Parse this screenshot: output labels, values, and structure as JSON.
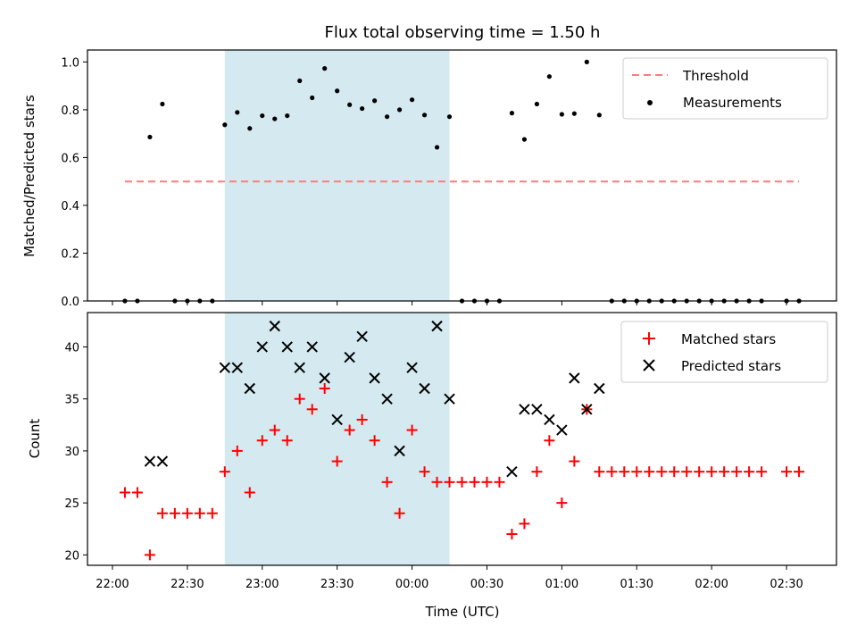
{
  "chart_data": [
    {
      "type": "scatter",
      "title": "Flux total observing time = 1.50 h",
      "xlabel": "",
      "ylabel": "Matched/Predicted stars",
      "ylim": [
        0,
        1.05
      ],
      "yticks": [
        0.0,
        0.2,
        0.4,
        0.6,
        0.8,
        1.0
      ],
      "ytick_labels": [
        "0.0",
        "0.2",
        "0.4",
        "0.6",
        "0.8",
        "1.0"
      ],
      "xlim": [
        "21:50",
        "02:50"
      ],
      "shaded_interval": [
        "22:45",
        "00:15"
      ],
      "shade_color": "#d4eaf0",
      "legend": {
        "placement": "upper right",
        "entries": [
          "Threshold",
          "Measurements"
        ]
      },
      "threshold": {
        "name": "Threshold",
        "value": 0.5,
        "x_range": [
          "22:05",
          "02:35"
        ],
        "color": "#ff7b7b",
        "style": "dashed"
      },
      "series": [
        {
          "name": "Measurements",
          "color": "#000000",
          "marker": "dot",
          "points": [
            [
              "22:05",
              0.0
            ],
            [
              "22:10",
              0.0
            ],
            [
              "22:15",
              0.686
            ],
            [
              "22:20",
              0.824
            ],
            [
              "22:25",
              0.0
            ],
            [
              "22:30",
              0.0
            ],
            [
              "22:35",
              0.0
            ],
            [
              "22:40",
              0.0
            ],
            [
              "22:45",
              0.737
            ],
            [
              "22:50",
              0.789
            ],
            [
              "22:55",
              0.722
            ],
            [
              "23:00",
              0.775
            ],
            [
              "23:05",
              0.762
            ],
            [
              "23:10",
              0.775
            ],
            [
              "23:15",
              0.921
            ],
            [
              "23:20",
              0.85
            ],
            [
              "23:25",
              0.973
            ],
            [
              "23:30",
              0.879
            ],
            [
              "23:35",
              0.821
            ],
            [
              "23:40",
              0.805
            ],
            [
              "23:45",
              0.838
            ],
            [
              "23:50",
              0.771
            ],
            [
              "23:55",
              0.8
            ],
            [
              "00:00",
              0.842
            ],
            [
              "00:05",
              0.778
            ],
            [
              "00:10",
              0.643
            ],
            [
              "00:15",
              0.771
            ],
            [
              "00:20",
              0.0
            ],
            [
              "00:25",
              0.0
            ],
            [
              "00:30",
              0.0
            ],
            [
              "00:35",
              0.0
            ],
            [
              "00:40",
              0.786
            ],
            [
              "00:45",
              0.676
            ],
            [
              "00:50",
              0.824
            ],
            [
              "00:55",
              0.939
            ],
            [
              "01:00",
              0.781
            ],
            [
              "01:05",
              0.784
            ],
            [
              "01:10",
              1.0
            ],
            [
              "01:15",
              0.778
            ],
            [
              "01:20",
              0.0
            ],
            [
              "01:25",
              0.0
            ],
            [
              "01:30",
              0.0
            ],
            [
              "01:35",
              0.0
            ],
            [
              "01:40",
              0.0
            ],
            [
              "01:45",
              0.0
            ],
            [
              "01:50",
              0.0
            ],
            [
              "01:55",
              0.0
            ],
            [
              "02:00",
              0.0
            ],
            [
              "02:05",
              0.0
            ],
            [
              "02:10",
              0.0
            ],
            [
              "02:15",
              0.0
            ],
            [
              "02:20",
              0.0
            ],
            [
              "02:30",
              0.0
            ],
            [
              "02:35",
              0.0
            ]
          ]
        }
      ]
    },
    {
      "type": "scatter",
      "title": "",
      "xlabel": "Time (UTC)",
      "ylabel": "Count",
      "ylim": [
        19,
        43.3
      ],
      "yticks": [
        20,
        25,
        30,
        35,
        40
      ],
      "ytick_labels": [
        "20",
        "25",
        "30",
        "35",
        "40"
      ],
      "xlim": [
        "21:50",
        "02:50"
      ],
      "xticks": [
        "22:00",
        "22:30",
        "23:00",
        "23:30",
        "00:00",
        "00:30",
        "01:00",
        "01:30",
        "02:00",
        "02:30"
      ],
      "xtick_labels": [
        "22:00",
        "22:30",
        "23:00",
        "23:30",
        "00:00",
        "00:30",
        "01:00",
        "01:30",
        "02:00",
        "02:30"
      ],
      "shaded_interval": [
        "22:45",
        "00:15"
      ],
      "shade_color": "#d4eaf0",
      "legend": {
        "placement": "upper right",
        "entries": [
          "Matched stars",
          "Predicted stars"
        ]
      },
      "series": [
        {
          "name": "Matched stars",
          "color": "#ff0000",
          "marker": "plus",
          "points": [
            [
              "22:05",
              26
            ],
            [
              "22:10",
              26
            ],
            [
              "22:15",
              20
            ],
            [
              "22:20",
              24
            ],
            [
              "22:25",
              24
            ],
            [
              "22:30",
              24
            ],
            [
              "22:35",
              24
            ],
            [
              "22:40",
              24
            ],
            [
              "22:45",
              28
            ],
            [
              "22:50",
              30
            ],
            [
              "22:55",
              26
            ],
            [
              "23:00",
              31
            ],
            [
              "23:05",
              32
            ],
            [
              "23:10",
              31
            ],
            [
              "23:15",
              35
            ],
            [
              "23:20",
              34
            ],
            [
              "23:25",
              36
            ],
            [
              "23:30",
              29
            ],
            [
              "23:35",
              32
            ],
            [
              "23:40",
              33
            ],
            [
              "23:45",
              31
            ],
            [
              "23:50",
              27
            ],
            [
              "23:55",
              24
            ],
            [
              "00:00",
              32
            ],
            [
              "00:05",
              28
            ],
            [
              "00:10",
              27
            ],
            [
              "00:15",
              27
            ],
            [
              "00:20",
              27
            ],
            [
              "00:25",
              27
            ],
            [
              "00:30",
              27
            ],
            [
              "00:35",
              27
            ],
            [
              "00:40",
              22
            ],
            [
              "00:45",
              23
            ],
            [
              "00:50",
              28
            ],
            [
              "00:55",
              31
            ],
            [
              "01:00",
              25
            ],
            [
              "01:05",
              29
            ],
            [
              "01:10",
              34
            ],
            [
              "01:15",
              28
            ],
            [
              "01:20",
              28
            ],
            [
              "01:25",
              28
            ],
            [
              "01:30",
              28
            ],
            [
              "01:35",
              28
            ],
            [
              "01:40",
              28
            ],
            [
              "01:45",
              28
            ],
            [
              "01:50",
              28
            ],
            [
              "01:55",
              28
            ],
            [
              "02:00",
              28
            ],
            [
              "02:05",
              28
            ],
            [
              "02:10",
              28
            ],
            [
              "02:15",
              28
            ],
            [
              "02:20",
              28
            ],
            [
              "02:30",
              28
            ],
            [
              "02:35",
              28
            ]
          ]
        },
        {
          "name": "Predicted stars",
          "color": "#000000",
          "marker": "x",
          "points": [
            [
              "22:15",
              29
            ],
            [
              "22:20",
              29
            ],
            [
              "22:45",
              38
            ],
            [
              "22:50",
              38
            ],
            [
              "22:55",
              36
            ],
            [
              "23:00",
              40
            ],
            [
              "23:05",
              42
            ],
            [
              "23:10",
              40
            ],
            [
              "23:15",
              38
            ],
            [
              "23:20",
              40
            ],
            [
              "23:25",
              37
            ],
            [
              "23:30",
              33
            ],
            [
              "23:35",
              39
            ],
            [
              "23:40",
              41
            ],
            [
              "23:45",
              37
            ],
            [
              "23:50",
              35
            ],
            [
              "23:55",
              30
            ],
            [
              "00:00",
              38
            ],
            [
              "00:05",
              36
            ],
            [
              "00:10",
              42
            ],
            [
              "00:15",
              35
            ],
            [
              "00:40",
              28
            ],
            [
              "00:45",
              34
            ],
            [
              "00:50",
              34
            ],
            [
              "00:55",
              33
            ],
            [
              "01:00",
              32
            ],
            [
              "01:05",
              37
            ],
            [
              "01:10",
              34
            ],
            [
              "01:15",
              36
            ]
          ]
        }
      ]
    }
  ]
}
